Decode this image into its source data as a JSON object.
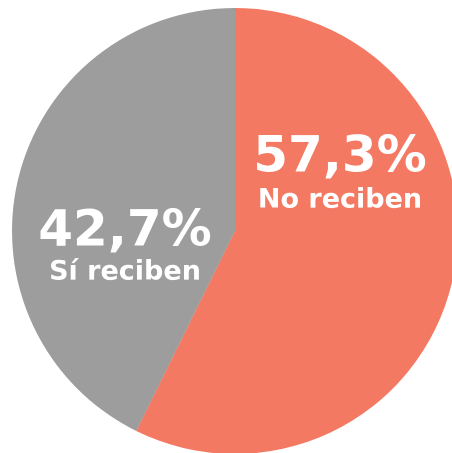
{
  "chart_data": {
    "type": "pie",
    "categories": [
      "No reciben",
      "Sí reciben"
    ],
    "values": [
      57.3,
      42.7
    ],
    "value_labels": [
      "57,3%",
      "42,7%"
    ],
    "colors": [
      "#f47963",
      "#9d9d9d"
    ]
  }
}
